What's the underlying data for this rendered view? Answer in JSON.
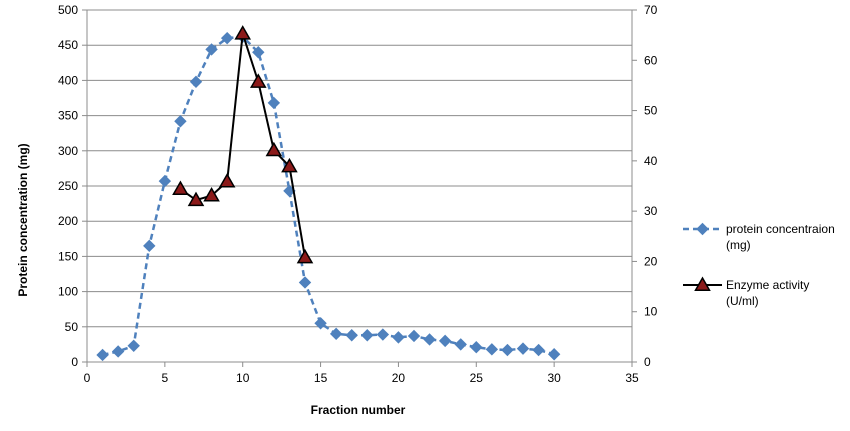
{
  "chart_data": {
    "type": "line",
    "title": "",
    "xlabel": "Fraction number",
    "ylabel": "Protein concentration (mg)",
    "y2label": "",
    "xlim": [
      0,
      35
    ],
    "ylim": [
      0,
      500
    ],
    "y2lim": [
      0,
      70
    ],
    "xticks": [
      "0",
      "5",
      "10",
      "15",
      "20",
      "25",
      "30",
      "35"
    ],
    "yticks": [
      "0",
      "50",
      "100",
      "150",
      "200",
      "250",
      "300",
      "350",
      "400",
      "450",
      "500"
    ],
    "y2ticks": [
      "0",
      "10",
      "20",
      "30",
      "40",
      "50",
      "60",
      "70"
    ],
    "grid": "horizontal",
    "legend_position": "right",
    "series": [
      {
        "name": "protein concentraion (mg)",
        "legend_lines": [
          "protein concentraion",
          "(mg)"
        ],
        "axis": "left",
        "color": "#4F81BD",
        "marker": "diamond",
        "line_style": "dashed",
        "x": [
          1,
          2,
          3,
          4,
          5,
          6,
          7,
          8,
          9,
          10,
          11,
          12,
          13,
          14,
          15,
          16,
          17,
          18,
          19,
          20,
          21,
          22,
          23,
          24,
          25,
          26,
          27,
          28,
          29,
          30
        ],
        "values": [
          10,
          15,
          23,
          165,
          257,
          342,
          398,
          444,
          460,
          462,
          440,
          368,
          243,
          113,
          55,
          40,
          38,
          38,
          39,
          35,
          37,
          32,
          30,
          25,
          21,
          18,
          17,
          19,
          17,
          11
        ]
      },
      {
        "name": "Enzyme activity (U/ml)",
        "legend_lines": [
          "Enzyme activity",
          "(U/ml)"
        ],
        "axis": "right",
        "color": "#000000",
        "marker_fill": "#8B1A1A",
        "marker": "triangle",
        "line_style": "solid",
        "x": [
          6,
          7,
          8,
          9,
          10,
          11,
          12,
          13,
          14
        ],
        "values": [
          34.4,
          32.2,
          33.1,
          35.9,
          65.3,
          55.7,
          42.1,
          38.9,
          20.8
        ]
      }
    ]
  }
}
